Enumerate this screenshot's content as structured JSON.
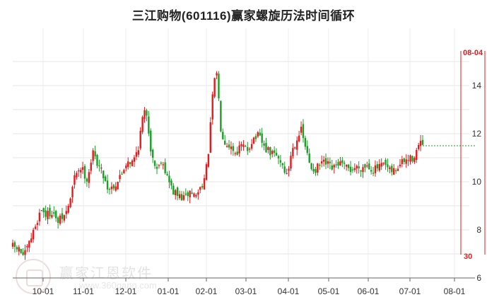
{
  "title": "三江购物(601116)赢家螺旋历法时间循环",
  "watermark": {
    "name": "赢家江恩软件",
    "url": "www.360gann.com"
  },
  "chart_data": {
    "type": "candlestick",
    "y_ticks": [
      6,
      8,
      10,
      12,
      14
    ],
    "ylim": [
      6,
      15.5
    ],
    "x_ticks": [
      "10-01",
      "11-01",
      "12-01",
      "01-01",
      "02-01",
      "03-01",
      "04-01",
      "05-01",
      "06-01",
      "07-01",
      "08-01"
    ],
    "grid": true,
    "up_color": "#e8191b",
    "down_color": "#19a025",
    "cycle_labels": {
      "top": "08-04",
      "bottom": "30"
    },
    "last_close": 11.5,
    "price_path": [
      [
        0,
        7.3
      ],
      [
        6,
        7.2
      ],
      [
        12,
        6.9
      ],
      [
        18,
        7.5
      ],
      [
        24,
        8.2
      ],
      [
        30,
        8.9
      ],
      [
        35,
        8.6
      ],
      [
        42,
        8.8
      ],
      [
        46,
        8.3
      ],
      [
        55,
        8.6
      ],
      [
        60,
        9.2
      ],
      [
        66,
        10.4
      ],
      [
        72,
        10.6
      ],
      [
        78,
        10.1
      ],
      [
        84,
        11.2
      ],
      [
        90,
        10.7
      ],
      [
        96,
        10.2
      ],
      [
        100,
        9.7
      ],
      [
        108,
        9.9
      ],
      [
        114,
        10.3
      ],
      [
        120,
        10.9
      ],
      [
        126,
        10.8
      ],
      [
        132,
        11.5
      ],
      [
        136,
        12.6
      ],
      [
        140,
        13.0
      ],
      [
        146,
        11.0
      ],
      [
        152,
        10.5
      ],
      [
        156,
        11.0
      ],
      [
        162,
        10.2
      ],
      [
        168,
        9.6
      ],
      [
        174,
        9.4
      ],
      [
        180,
        9.3
      ],
      [
        186,
        9.6
      ],
      [
        192,
        9.4
      ],
      [
        196,
        9.7
      ],
      [
        202,
        10.2
      ],
      [
        206,
        11.5
      ],
      [
        210,
        13.8
      ],
      [
        214,
        14.6
      ],
      [
        218,
        12.3
      ],
      [
        222,
        11.7
      ],
      [
        228,
        11.5
      ],
      [
        234,
        11.2
      ],
      [
        240,
        11.5
      ],
      [
        246,
        11.3
      ],
      [
        252,
        11.8
      ],
      [
        258,
        11.9
      ],
      [
        264,
        11.4
      ],
      [
        270,
        11.2
      ],
      [
        276,
        11.1
      ],
      [
        282,
        10.8
      ],
      [
        288,
        10.2
      ],
      [
        292,
        11.2
      ],
      [
        296,
        11.6
      ],
      [
        302,
        12.2
      ],
      [
        306,
        11.6
      ],
      [
        312,
        10.6
      ],
      [
        318,
        10.5
      ],
      [
        324,
        10.8
      ],
      [
        330,
        10.7
      ],
      [
        336,
        10.5
      ],
      [
        342,
        10.8
      ],
      [
        348,
        10.6
      ],
      [
        354,
        10.5
      ],
      [
        360,
        10.6
      ],
      [
        366,
        10.6
      ],
      [
        372,
        10.7
      ],
      [
        378,
        10.5
      ],
      [
        384,
        10.6
      ],
      [
        390,
        10.7
      ],
      [
        396,
        10.4
      ],
      [
        402,
        10.5
      ],
      [
        408,
        10.8
      ],
      [
        414,
        10.9
      ],
      [
        420,
        11.0
      ],
      [
        426,
        11.5
      ],
      [
        430,
        11.6
      ]
    ]
  }
}
